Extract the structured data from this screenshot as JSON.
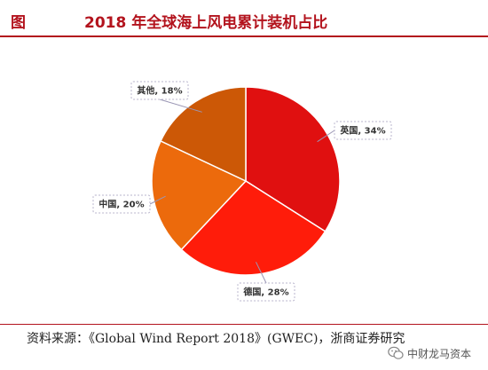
{
  "header": {
    "figure_label": "图",
    "title": "2018 年全球海上风电累计装机占比"
  },
  "chart_data": {
    "type": "pie",
    "title": "2018 年全球海上风电累计装机占比",
    "slices": [
      {
        "name": "英国",
        "value": 34,
        "label": "英国, 34%",
        "color": "#e01010"
      },
      {
        "name": "德国",
        "value": 28,
        "label": "德国, 28%",
        "color": "#ff1c0a"
      },
      {
        "name": "中国",
        "value": 20,
        "label": "中国, 20%",
        "color": "#ec6a0c"
      },
      {
        "name": "其他",
        "value": 18,
        "label": "其他, 18%",
        "color": "#cc5806"
      }
    ],
    "start": "12 o'clock",
    "direction": "clockwise",
    "units": "%"
  },
  "footer": {
    "source": "资料来源：《Global Wind Report 2018》(GWEC)，浙商证券研究"
  },
  "watermark": {
    "icon": "wechat-icon",
    "text": "中财龙马资本"
  }
}
